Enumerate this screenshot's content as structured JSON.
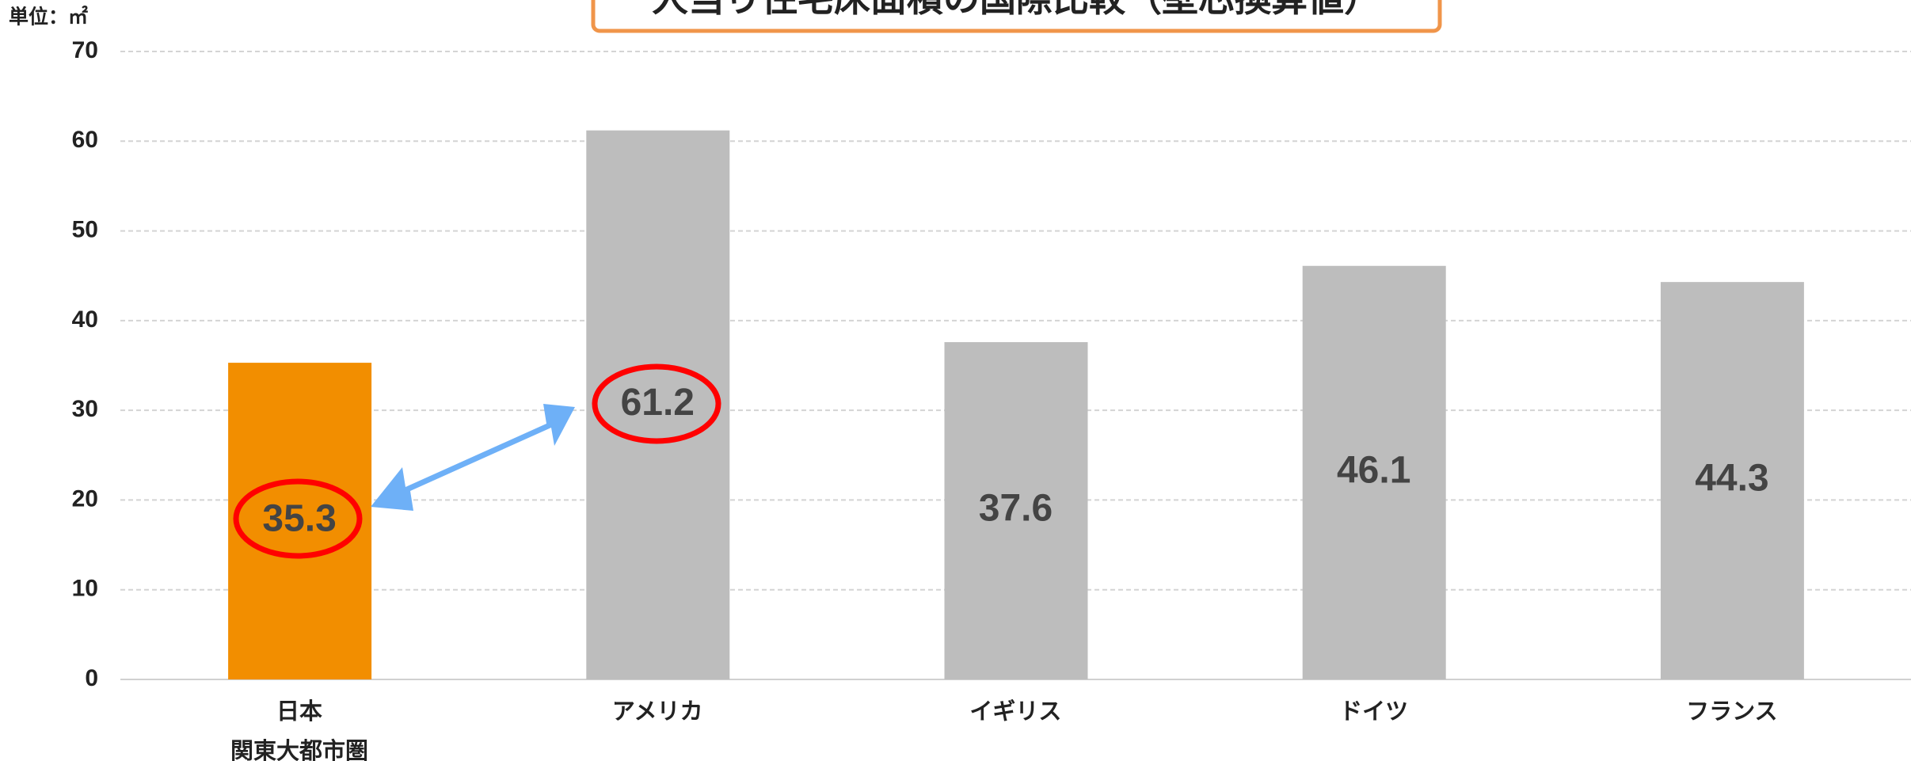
{
  "chart_data": {
    "type": "bar",
    "title": "人当り住宅床面積の国際比較（壁芯換算値）",
    "unit_label": "単位：㎡",
    "categories": [
      "日本\n関東大都市圏",
      "アメリカ",
      "イギリス",
      "ドイツ",
      "フランス"
    ],
    "values": [
      35.3,
      61.2,
      37.6,
      46.1,
      44.3
    ],
    "colors": [
      "#f28e00",
      "#bdbdbd",
      "#bdbdbd",
      "#bdbdbd",
      "#bdbdbd"
    ],
    "ylim": [
      0,
      70
    ],
    "yticks": [
      0,
      10,
      20,
      30,
      40,
      50,
      60,
      70
    ],
    "grid": true
  }
}
